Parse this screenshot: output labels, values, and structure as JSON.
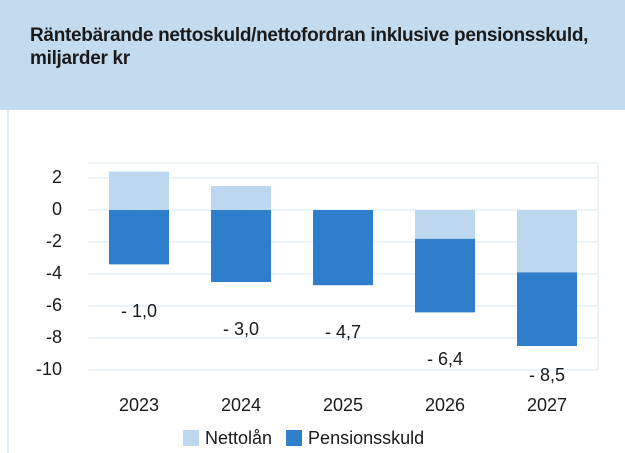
{
  "chart_data": {
    "type": "bar",
    "stacked": true,
    "title": "Räntebärande nettoskuld/nettofordran inklusive pensionsskuld, miljarder kr",
    "categories": [
      "2023",
      "2024",
      "2025",
      "2026",
      "2027"
    ],
    "series": [
      {
        "name": "Nettolån",
        "color": "#bdd7ee",
        "values": [
          2.4,
          1.5,
          0,
          -1.8,
          -3.9
        ]
      },
      {
        "name": "Pensionsskuld",
        "color": "#2f7ecb",
        "values": [
          -3.4,
          -4.5,
          -4.7,
          -4.6,
          -4.6
        ]
      }
    ],
    "totals": {
      "values": [
        -1.0,
        -3.0,
        -4.7,
        -6.4,
        -8.5
      ],
      "value_labels": [
        "- 1,0",
        "- 3,0",
        "- 4,7",
        "- 6,4",
        "- 8,5"
      ]
    },
    "ylim": [
      -10,
      3
    ],
    "yticks": [
      -10,
      -8,
      -6,
      -4,
      -2,
      0,
      2
    ],
    "grid": true,
    "legend": "bottom"
  }
}
